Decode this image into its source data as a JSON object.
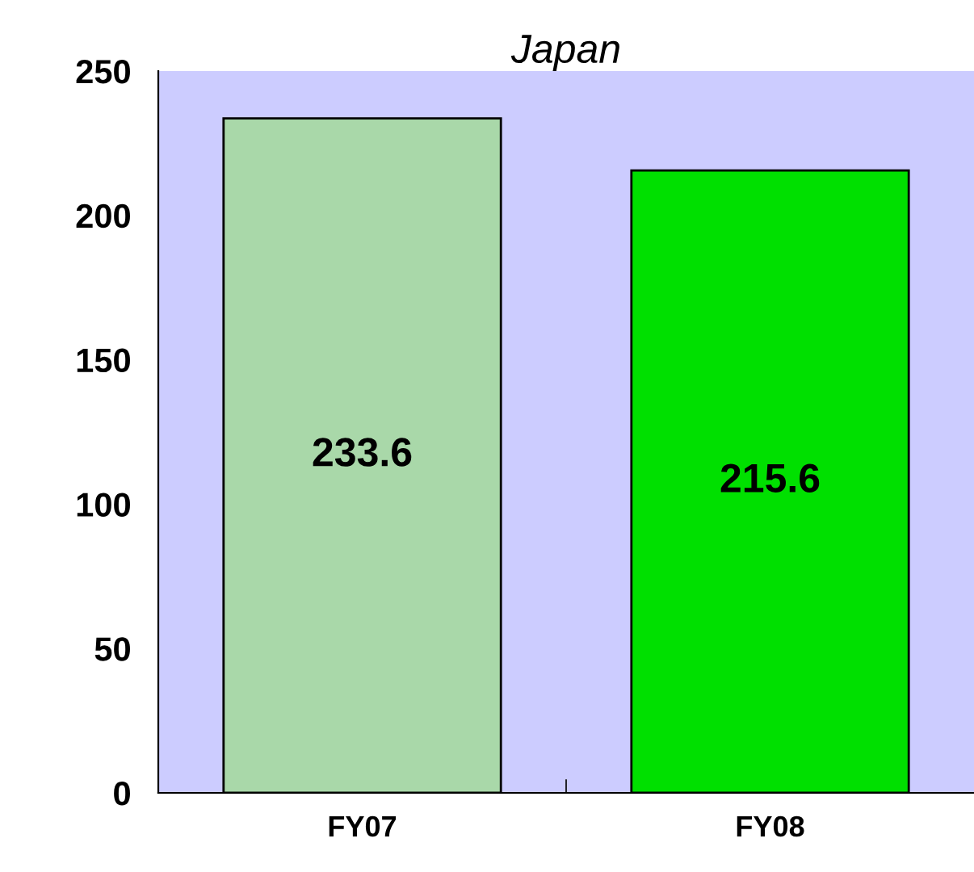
{
  "chart_data": {
    "type": "bar",
    "title": "Japan",
    "categories": [
      "FY07",
      "FY08"
    ],
    "values": [
      233.6,
      215.6
    ],
    "colors": [
      "#a9d8a9",
      "#00e000"
    ],
    "ylim": [
      0,
      250
    ],
    "yticks": [
      0,
      50,
      100,
      150,
      200,
      250
    ],
    "grid": false,
    "data_labels": true,
    "legend": false
  }
}
